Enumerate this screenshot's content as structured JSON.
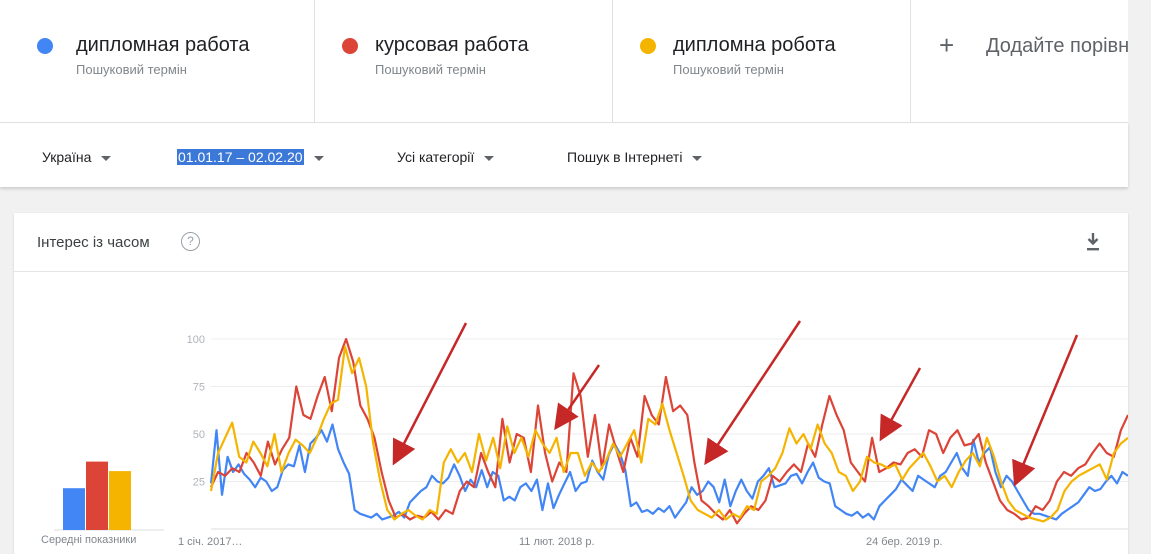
{
  "terms": [
    {
      "name": "дипломная работа",
      "sub": "Пошуковий термін",
      "color": "#4285f4"
    },
    {
      "name": "курсовая работа",
      "sub": "Пошуковий термін",
      "color": "#db4437"
    },
    {
      "name": "дипломна робота",
      "sub": "Пошуковий термін",
      "color": "#f4b400"
    }
  ],
  "add_term": {
    "plus": "+",
    "label": "Додайте порівн"
  },
  "filters": {
    "region": "Україна",
    "date_range": "01.01.17 – 02.02.20",
    "category": "Усі категорії",
    "search_type": "Пошук в Інтернеті"
  },
  "card": {
    "title": "Інтерес із часом",
    "help": "?"
  },
  "averages": {
    "label": "Середні показники",
    "values": [
      22,
      36,
      31
    ]
  },
  "chart_data": {
    "type": "line",
    "x_labels": [
      "1 січ. 2017…",
      "11 лют. 2018 р.",
      "24 бер. 2019 р."
    ],
    "y_ticks": [
      25,
      50,
      75,
      100
    ],
    "ylim": [
      0,
      100
    ],
    "series": [
      {
        "name": "дипломная работа",
        "color": "#4285f4",
        "values": [
          24,
          52,
          18,
          38,
          30,
          34,
          29,
          26,
          22,
          27,
          25,
          20,
          22,
          31,
          34,
          33,
          44,
          30,
          45,
          48,
          52,
          46,
          55,
          42,
          35,
          29,
          10,
          8,
          7,
          6,
          8,
          5,
          6,
          7,
          9,
          6,
          14,
          17,
          20,
          22,
          28,
          25,
          24,
          27,
          34,
          28,
          20,
          26,
          22,
          31,
          22,
          30,
          28,
          15,
          17,
          15,
          22,
          24,
          20,
          26,
          10,
          24,
          11,
          18,
          24,
          30,
          20,
          24,
          25,
          36,
          30,
          26,
          39,
          45,
          40,
          31,
          12,
          14,
          9,
          10,
          8,
          11,
          9,
          12,
          6,
          10,
          14,
          22,
          18,
          20,
          25,
          22,
          14,
          26,
          12,
          20,
          26,
          20,
          16,
          25,
          28,
          32,
          22,
          23,
          24,
          28,
          29,
          24,
          30,
          35,
          27,
          25,
          24,
          12,
          10,
          8,
          7,
          9,
          6,
          8,
          5,
          12,
          15,
          18,
          21,
          26,
          23,
          20,
          28,
          26,
          24,
          22,
          28,
          30,
          35,
          40,
          32,
          28,
          47,
          35,
          40,
          43,
          30,
          22,
          28,
          25,
          20,
          15,
          10,
          8,
          8,
          7,
          6,
          5,
          8,
          10,
          12,
          14,
          18,
          22,
          20,
          21,
          25,
          28,
          24,
          30,
          28
        ],
        "render": "line"
      },
      {
        "name": "курсовая работа",
        "color": "#db4437",
        "values": [
          22,
          30,
          28,
          32,
          30,
          40,
          35,
          28,
          46,
          34,
          42,
          48,
          75,
          60,
          58,
          70,
          80,
          62,
          90,
          100,
          88,
          65,
          58,
          48,
          30,
          15,
          6,
          8,
          5,
          7,
          6,
          9,
          5,
          10,
          8,
          20,
          25,
          22,
          40,
          30,
          22,
          58,
          35,
          50,
          48,
          30,
          65,
          40,
          25,
          35,
          30,
          82,
          70,
          38,
          60,
          32,
          55,
          42,
          30,
          48,
          38,
          70,
          60,
          55,
          80,
          62,
          65,
          60,
          35,
          15,
          12,
          8,
          5,
          10,
          3,
          8,
          12,
          10,
          15,
          28,
          25,
          30,
          34,
          30,
          45,
          38,
          55,
          70,
          60,
          52,
          35,
          30,
          25,
          48,
          30,
          32,
          35,
          34,
          40,
          42,
          38,
          52,
          50,
          40,
          48,
          52,
          44,
          45,
          50,
          35,
          25,
          15,
          10,
          8,
          5,
          6,
          12,
          10,
          15,
          25,
          30,
          28,
          32,
          34,
          40,
          45,
          40,
          38,
          52,
          60
        ],
        "render": "line"
      },
      {
        "name": "дипломна робота",
        "color": "#f4b400",
        "values": [
          20,
          40,
          48,
          56,
          38,
          35,
          46,
          40,
          33,
          50,
          30,
          40,
          47,
          44,
          40,
          48,
          58,
          66,
          68,
          96,
          82,
          90,
          75,
          45,
          25,
          10,
          5,
          8,
          10,
          7,
          5,
          10,
          8,
          35,
          42,
          35,
          40,
          30,
          50,
          36,
          48,
          32,
          54,
          40,
          48,
          38,
          52,
          45,
          40,
          48,
          30,
          40,
          40,
          28,
          35,
          30,
          36,
          45,
          38,
          45,
          52,
          35,
          58,
          55,
          66,
          52,
          40,
          28,
          15,
          10,
          8,
          6,
          10,
          5,
          8,
          6,
          12,
          10,
          25,
          28,
          32,
          40,
          53,
          45,
          50,
          42,
          55,
          45,
          40,
          30,
          28,
          20,
          25,
          38,
          35,
          34,
          32,
          34,
          26,
          32,
          36,
          40,
          33,
          25,
          28,
          22,
          30,
          36,
          40,
          33,
          48,
          38,
          25,
          15,
          10,
          8,
          6,
          5,
          4,
          6,
          10,
          20,
          25,
          28,
          30,
          32,
          34,
          26,
          40,
          45,
          48
        ],
        "render": "line"
      }
    ]
  }
}
